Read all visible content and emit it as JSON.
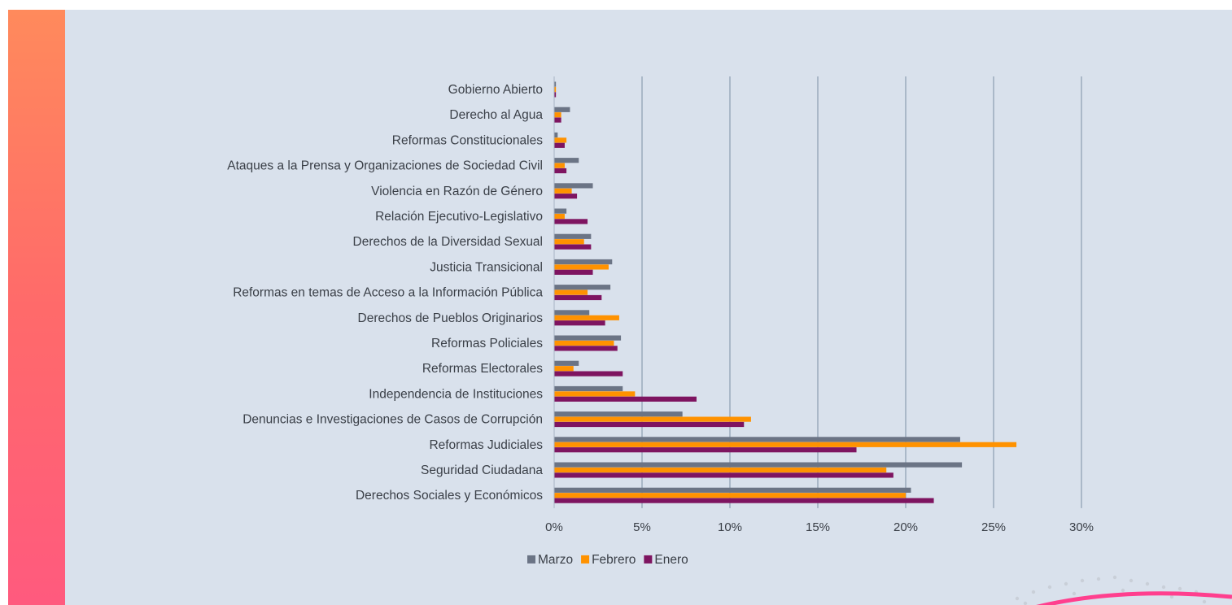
{
  "chart_data": {
    "type": "bar",
    "orientation": "horizontal",
    "title": "",
    "xlabel": "",
    "ylabel": "",
    "xlim": [
      0,
      0.3
    ],
    "ticks": [
      "0%",
      "5%",
      "10%",
      "15%",
      "20%",
      "25%",
      "30%"
    ],
    "grid": true,
    "legend_placement": "bottom",
    "categories": [
      "Gobierno Abierto",
      "Derecho al Agua",
      "Reformas Constitucionales",
      "Ataques a la Prensa y Organizaciones de Sociedad Civil",
      "Violencia en Razón de Género",
      "Relación Ejecutivo-Legislativo",
      "Derechos de la Diversidad Sexual",
      "Justicia Transicional",
      "Reformas en temas de Acceso a la Información Pública",
      "Derechos de Pueblos Originarios",
      "Reformas Policiales",
      "Reformas Electorales",
      "Independencia de Instituciones",
      "Denuncias e Investigaciones de Casos de Corrupción",
      "Reformas Judiciales",
      "Seguridad Ciudadana",
      "Derechos Sociales y Económicos"
    ],
    "series": [
      {
        "name": "Marzo",
        "color": "#6b7485",
        "values": [
          0.001,
          0.009,
          0.002,
          0.014,
          0.022,
          0.007,
          0.021,
          0.033,
          0.032,
          0.02,
          0.038,
          0.014,
          0.039,
          0.073,
          0.231,
          0.232,
          0.203
        ]
      },
      {
        "name": "Febrero",
        "color": "#ff9200",
        "values": [
          0.001,
          0.004,
          0.007,
          0.006,
          0.01,
          0.006,
          0.017,
          0.031,
          0.019,
          0.037,
          0.034,
          0.011,
          0.046,
          0.112,
          0.263,
          0.189,
          0.2
        ]
      },
      {
        "name": "Enero",
        "color": "#7e1460",
        "values": [
          0.001,
          0.004,
          0.006,
          0.007,
          0.013,
          0.019,
          0.021,
          0.022,
          0.027,
          0.029,
          0.036,
          0.039,
          0.081,
          0.108,
          0.172,
          0.193,
          0.216
        ]
      }
    ]
  },
  "colors": {
    "panel_background": "#d9e1ec",
    "gridline": "#9aaabb",
    "label_text": "#3a3f47"
  }
}
